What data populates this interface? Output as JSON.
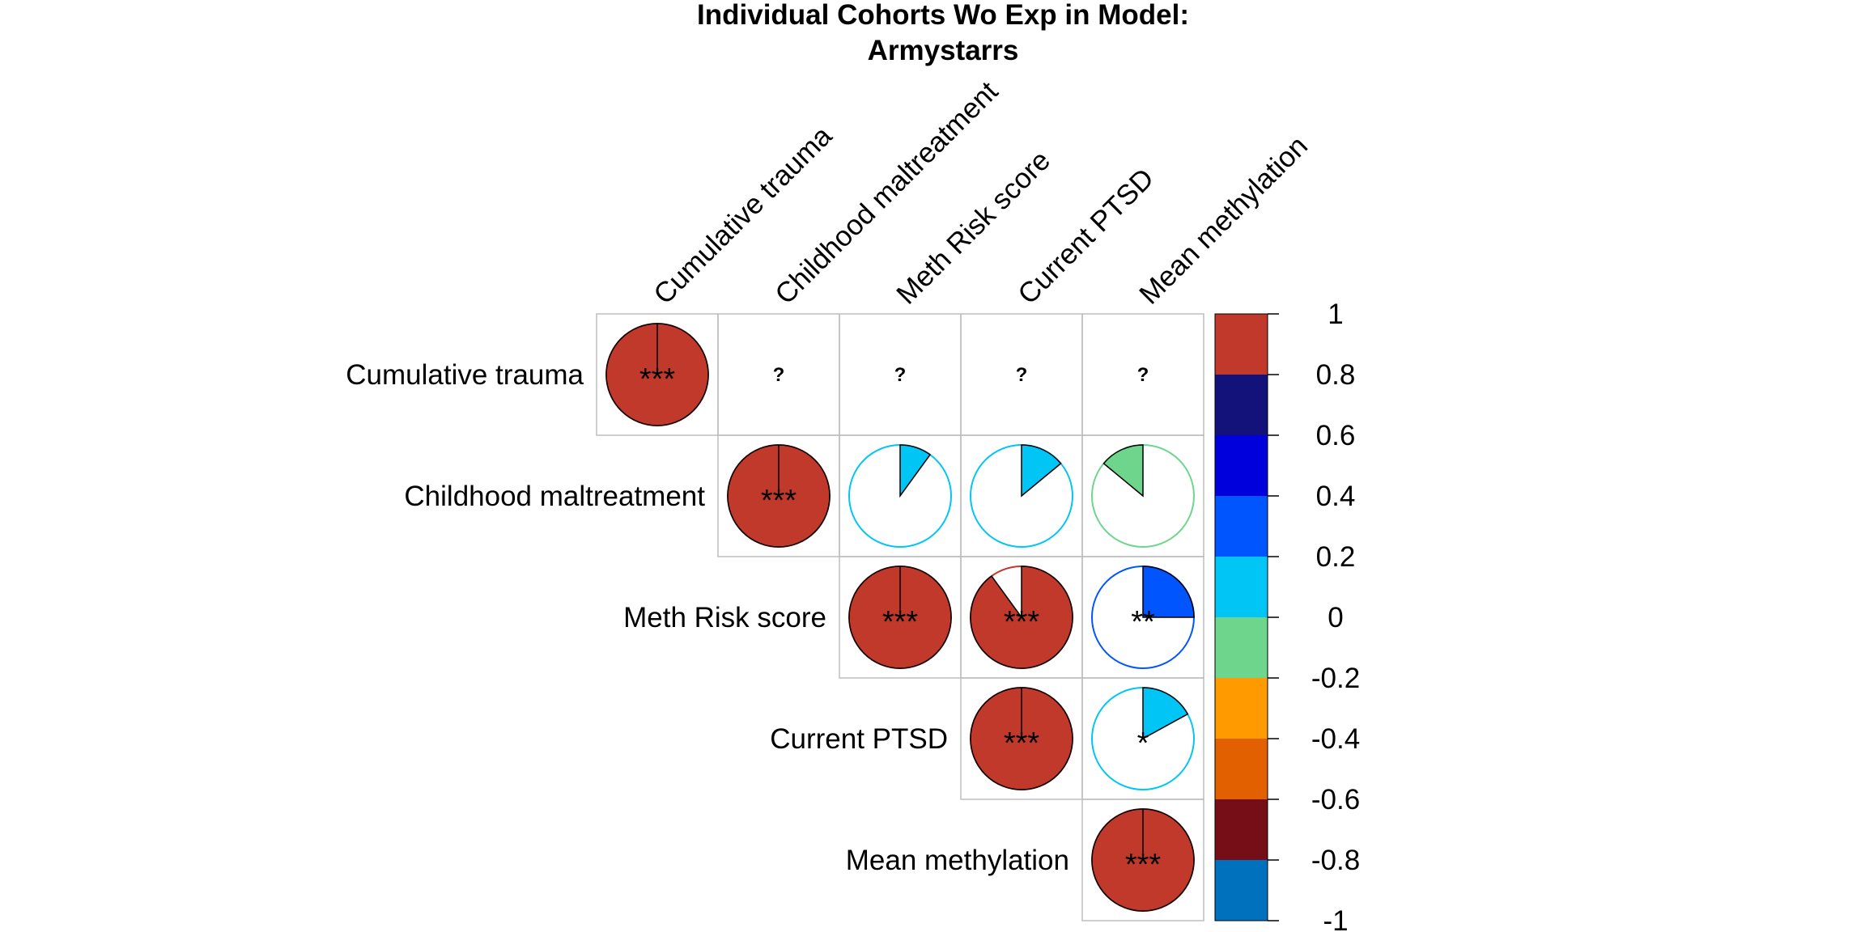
{
  "chart_data": {
    "type": "correlation-matrix-pie",
    "title_lines": [
      "Individual Cohorts Wo Exp in Model:",
      "Armystarrs"
    ],
    "variables": [
      "Cumulative trauma",
      "Childhood maltreatment",
      "Meth Risk score",
      "Current PTSD",
      "Mean methylation"
    ],
    "cells": [
      {
        "row": 0,
        "col": 0,
        "r": 1.0,
        "label": "***"
      },
      {
        "row": 0,
        "col": 1,
        "r": null,
        "label": "?"
      },
      {
        "row": 0,
        "col": 2,
        "r": null,
        "label": "?"
      },
      {
        "row": 0,
        "col": 3,
        "r": null,
        "label": "?"
      },
      {
        "row": 0,
        "col": 4,
        "r": null,
        "label": "?"
      },
      {
        "row": 1,
        "col": 1,
        "r": 1.0,
        "label": "***"
      },
      {
        "row": 1,
        "col": 2,
        "r": 0.1,
        "label": ""
      },
      {
        "row": 1,
        "col": 3,
        "r": 0.14,
        "label": ""
      },
      {
        "row": 1,
        "col": 4,
        "r": -0.14,
        "label": ""
      },
      {
        "row": 2,
        "col": 2,
        "r": 1.0,
        "label": "***"
      },
      {
        "row": 2,
        "col": 3,
        "r": 0.9,
        "label": "***"
      },
      {
        "row": 2,
        "col": 4,
        "r": 0.25,
        "label": "**"
      },
      {
        "row": 3,
        "col": 3,
        "r": 1.0,
        "label": "***"
      },
      {
        "row": 3,
        "col": 4,
        "r": 0.17,
        "label": "*"
      },
      {
        "row": 4,
        "col": 4,
        "r": 1.0,
        "label": "***"
      }
    ],
    "colorbar": {
      "ticks": [
        "1",
        "0.8",
        "0.6",
        "0.4",
        "0.2",
        "0",
        "-0.2",
        "-0.4",
        "-0.6",
        "-0.8",
        "-1"
      ],
      "colors_top_to_bottom": [
        "#c0392b",
        "#12127a",
        "#0000dd",
        "#0055ff",
        "#00c5f5",
        "#6dd68c",
        "#ff9b00",
        "#e36000",
        "#750e16",
        "#0072bd"
      ]
    },
    "color_scale_domain": [
      -1,
      1
    ]
  }
}
